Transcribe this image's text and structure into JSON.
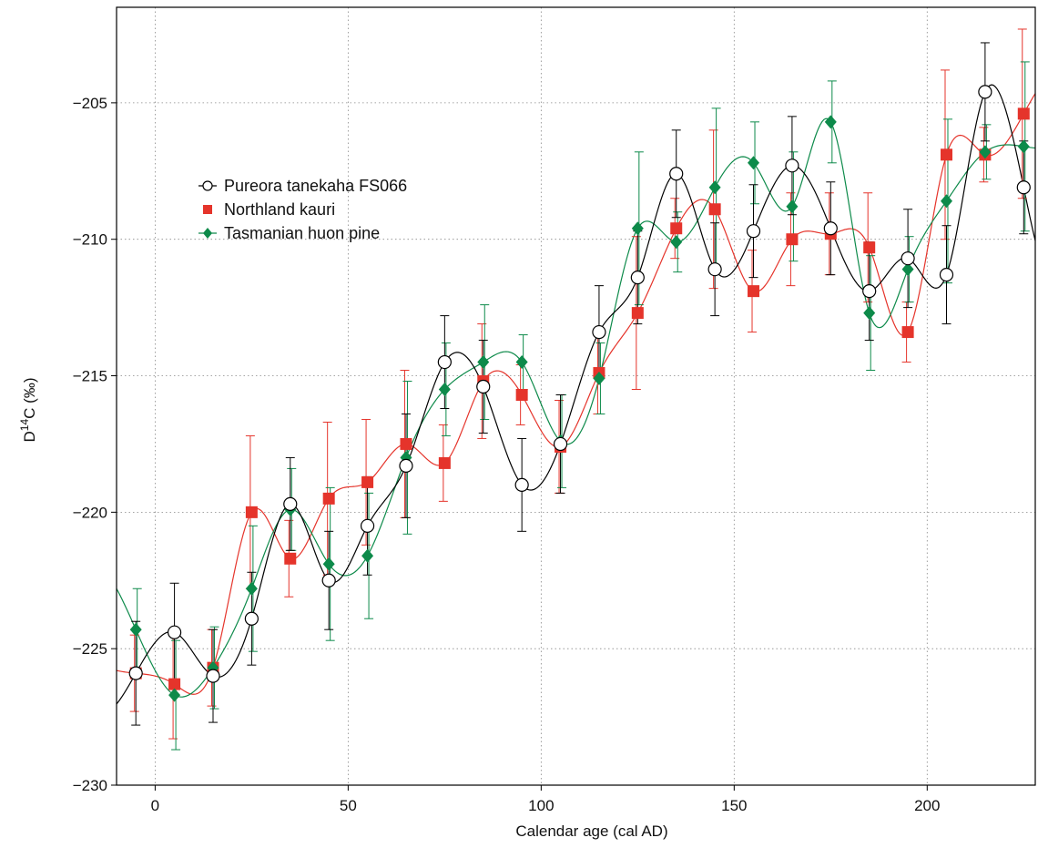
{
  "chart_data": {
    "type": "line",
    "xlabel": "Calendar age (cal AD)",
    "ylabel_main": "D",
    "ylabel_sup": "14",
    "ylabel_rest": "C (‰)",
    "xlim": [
      -10,
      228
    ],
    "ylim": [
      -230,
      -201.5
    ],
    "xticks": [
      0,
      50,
      100,
      150,
      200
    ],
    "yticks": [
      -230,
      -225,
      -220,
      -215,
      -210,
      -205
    ],
    "xtick_labels": [
      "0",
      "50",
      "100",
      "150",
      "200"
    ],
    "ytick_labels": [
      "−230",
      "−225",
      "−220",
      "−215",
      "−210",
      "−205"
    ],
    "grid": true,
    "legend_position": "upper-left",
    "series": [
      {
        "name": "Pureora tanekaha FS066",
        "marker": "circle",
        "color": "#000000",
        "x": [
          -5,
          5,
          15,
          25,
          35,
          45,
          55,
          65,
          75,
          85,
          95,
          105,
          115,
          125,
          135,
          145,
          155,
          165,
          175,
          185,
          195,
          205,
          215,
          225
        ],
        "y": [
          -225.9,
          -224.4,
          -226.0,
          -223.9,
          -219.7,
          -222.5,
          -220.5,
          -218.3,
          -214.5,
          -215.4,
          -219.0,
          -217.5,
          -213.4,
          -211.4,
          -207.6,
          -211.1,
          -209.7,
          -207.3,
          -209.6,
          -211.9,
          -210.7,
          -211.3,
          -204.6,
          -208.1
        ],
        "err": [
          1.9,
          1.8,
          1.7,
          1.7,
          1.7,
          1.8,
          1.8,
          1.9,
          1.7,
          1.7,
          1.7,
          1.8,
          1.7,
          1.7,
          1.6,
          1.7,
          1.7,
          1.8,
          1.7,
          1.8,
          1.8,
          1.8,
          1.8,
          1.7
        ]
      },
      {
        "name": "Northland kauri",
        "marker": "square",
        "color": "#e5342b",
        "x": [
          -5,
          5,
          15,
          25,
          35,
          45,
          55,
          65,
          75,
          85,
          95,
          105,
          115,
          125,
          135,
          145,
          155,
          165,
          175,
          185,
          195,
          205,
          215,
          225
        ],
        "y": [
          -225.9,
          -226.3,
          -225.7,
          -220.0,
          -221.7,
          -219.5,
          -218.9,
          -217.5,
          -218.2,
          -215.2,
          -215.7,
          -217.6,
          -214.9,
          -212.7,
          -209.6,
          -208.9,
          -211.9,
          -210.0,
          -209.8,
          -210.3,
          -213.4,
          -206.9,
          -206.9,
          -205.4
        ],
        "err": [
          1.4,
          2.0,
          1.4,
          2.8,
          1.4,
          2.8,
          2.3,
          2.7,
          1.4,
          2.1,
          1.1,
          1.7,
          1.5,
          2.8,
          1.1,
          2.9,
          1.5,
          1.7,
          1.5,
          2.0,
          1.1,
          3.1,
          1.0,
          3.1
        ]
      },
      {
        "name": "Tasmanian huon pine",
        "marker": "diamond",
        "color": "#0d8a4a",
        "x": [
          -5,
          5,
          15,
          25,
          35,
          45,
          55,
          65,
          75,
          85,
          95,
          105,
          115,
          125,
          135,
          145,
          155,
          165,
          175,
          185,
          195,
          205,
          215,
          225
        ],
        "y": [
          -224.3,
          -226.7,
          -225.7,
          -222.8,
          -219.9,
          -221.9,
          -221.6,
          -218.0,
          -215.5,
          -214.5,
          -214.5,
          -217.4,
          -215.1,
          -209.6,
          -210.1,
          -208.1,
          -207.2,
          -208.8,
          -205.7,
          -212.7,
          -211.1,
          -208.6,
          -206.8,
          -206.6
        ],
        "err": [
          1.5,
          2.0,
          1.5,
          2.3,
          1.5,
          2.8,
          2.3,
          2.8,
          1.7,
          2.1,
          1.0,
          1.7,
          1.3,
          2.8,
          1.1,
          2.9,
          1.5,
          2.0,
          1.5,
          2.1,
          1.2,
          3.0,
          1.0,
          3.1
        ]
      }
    ]
  }
}
